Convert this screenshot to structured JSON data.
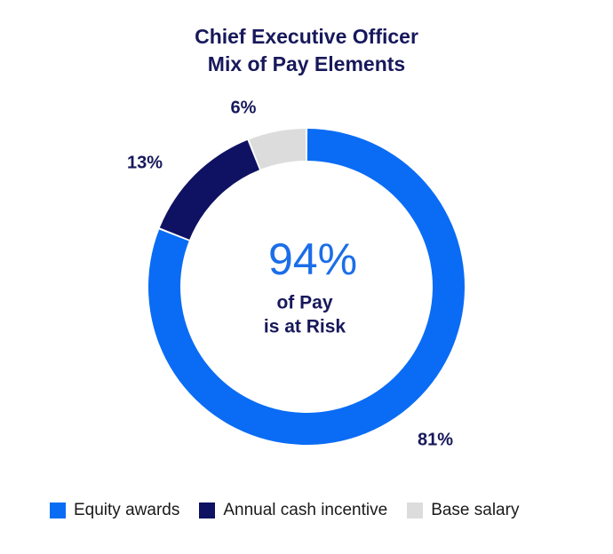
{
  "chart_data": {
    "type": "pie",
    "title": "Chief Executive Officer",
    "subtitle": "Mix of Pay Elements",
    "categories": [
      "Equity awards",
      "Annual cash incentive",
      "Base salary"
    ],
    "values": [
      81,
      13,
      6
    ],
    "value_labels": [
      "81%",
      "13%",
      "6%"
    ],
    "colors": [
      "#0a6cf5",
      "#0f1262",
      "#dcdcdc"
    ],
    "center_value": "94%",
    "center_text_line1": "of Pay",
    "center_text_line2": "is at Risk",
    "legend_position": "bottom",
    "title_color": "#17185b",
    "center_value_color": "#1b6ee8"
  }
}
